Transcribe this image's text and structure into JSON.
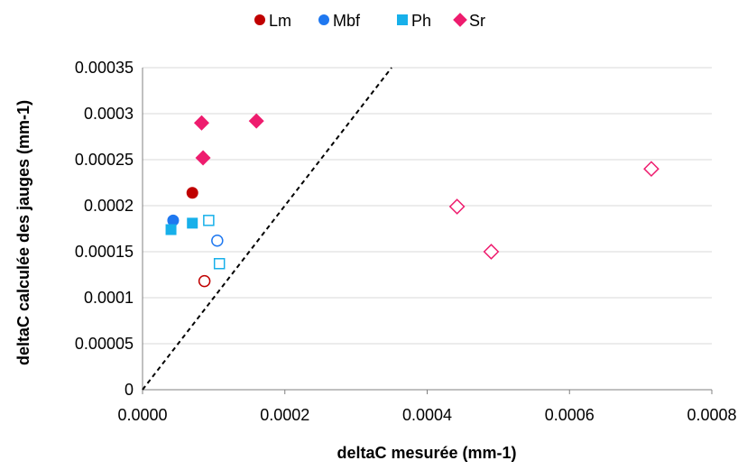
{
  "chart_data": {
    "type": "scatter",
    "title": "",
    "xlabel": "deltaC mesurée (mm-1)",
    "ylabel": "deltaC calculée des jauges (mm-1)",
    "xlim": [
      0,
      0.0008
    ],
    "ylim": [
      0,
      0.00035
    ],
    "x_ticks": [
      0,
      0.0002,
      0.0004,
      0.0006,
      0.0008
    ],
    "x_tick_labels": [
      "0.0000",
      "0.0002",
      "0.0004",
      "0.0006",
      "0.0008"
    ],
    "y_ticks": [
      0,
      5e-05,
      0.0001,
      0.00015,
      0.0002,
      0.00025,
      0.0003,
      0.00035
    ],
    "y_tick_labels": [
      "0",
      "0.00005",
      "0.0001",
      "0.00015",
      "0.0002",
      "0.00025",
      "0.0003",
      "0.00035"
    ],
    "grid": "horizontal",
    "legend_position": "top",
    "reference_line": {
      "style": "dashed",
      "color": "#000000",
      "points": [
        [
          0,
          0
        ],
        [
          0.00035,
          0.00035
        ]
      ]
    },
    "series": [
      {
        "name": "Lm",
        "marker": "circle",
        "color": "#C00000",
        "points": [
          {
            "x": 7e-05,
            "y": 0.000214,
            "filled": true
          },
          {
            "x": 8.7e-05,
            "y": 0.000118,
            "filled": false
          }
        ]
      },
      {
        "name": "Mbf",
        "marker": "circle",
        "color": "#1F78F0",
        "points": [
          {
            "x": 4.3e-05,
            "y": 0.000184,
            "filled": true
          },
          {
            "x": 0.000105,
            "y": 0.000162,
            "filled": false
          }
        ]
      },
      {
        "name": "Ph",
        "marker": "square",
        "color": "#17B0EA",
        "points": [
          {
            "x": 4e-05,
            "y": 0.000174,
            "filled": true
          },
          {
            "x": 7e-05,
            "y": 0.000181,
            "filled": true
          },
          {
            "x": 9.3e-05,
            "y": 0.000184,
            "filled": false
          },
          {
            "x": 0.000108,
            "y": 0.000137,
            "filled": false
          }
        ]
      },
      {
        "name": "Sr",
        "marker": "diamond",
        "color": "#EE1C6E",
        "points": [
          {
            "x": 8.3e-05,
            "y": 0.00029,
            "filled": true
          },
          {
            "x": 8.5e-05,
            "y": 0.000252,
            "filled": true
          },
          {
            "x": 0.00016,
            "y": 0.000292,
            "filled": true
          },
          {
            "x": 0.000442,
            "y": 0.000199,
            "filled": false
          },
          {
            "x": 0.00049,
            "y": 0.00015,
            "filled": false
          },
          {
            "x": 0.000715,
            "y": 0.00024,
            "filled": false
          }
        ]
      }
    ]
  }
}
